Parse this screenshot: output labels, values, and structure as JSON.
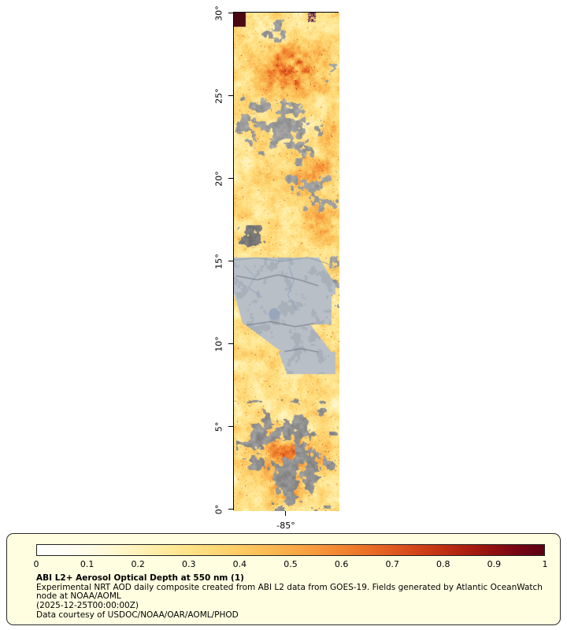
{
  "figure": {
    "lat_tick_labels": [
      "30°",
      "25°",
      "20°",
      "15°",
      "10°",
      "5°",
      "0°"
    ],
    "lon_tick_label": "-85°"
  },
  "legend": {
    "tick_labels": [
      "0",
      "0.1",
      "0.2",
      "0.3",
      "0.4",
      "0.5",
      "0.6",
      "0.7",
      "0.8",
      "0.9",
      "1"
    ],
    "title": "ABI L2+ Aerosol Optical Depth at 550 nm (1)",
    "description": "Experimental NRT AOD daily composite created from ABI L2 data from GOES-19. Fields generated by Atlantic OceanWatch node at NOAA/AOML",
    "timestamp": "(2025-12-25T00:00:00Z)",
    "credit": "Data courtesy of USDOC/NOAA/OAR/AOML/PHOD",
    "panel_background": "#fffee1",
    "colormap": [
      "#ffffff",
      "#fffef8",
      "#fffce8",
      "#fff8d2",
      "#fff2b8",
      "#ffeb9e",
      "#ffe288",
      "#fed876",
      "#fdcb64",
      "#fbbc55",
      "#f9ab48",
      "#f6993c",
      "#f18531",
      "#ea7028",
      "#e05a20",
      "#d24419",
      "#c03013",
      "#aa1e0f",
      "#90100f",
      "#740513",
      "#5a0013"
    ]
  },
  "map_colors": {
    "cloud_gray": "#8f8f8f",
    "cloud_dark": "#6e6e6e",
    "land_gray": "#b8bfc7",
    "border_line": "#5a6570",
    "coast_line": "#7d93a8",
    "river_line": "#7d98c4"
  },
  "chart_data": {
    "type": "heatmap",
    "title": "ABI L2+ Aerosol Optical Depth at 550 nm (1)",
    "colorbar_range": [
      0,
      1
    ],
    "colorbar_ticks": [
      0,
      0.1,
      0.2,
      0.3,
      0.4,
      0.5,
      0.6,
      0.7,
      0.8,
      0.9,
      1
    ],
    "lat_ticks_deg": [
      0,
      5,
      10,
      15,
      20,
      25,
      30
    ],
    "lon_tick_deg": -85,
    "legend_position": "bottom"
  }
}
